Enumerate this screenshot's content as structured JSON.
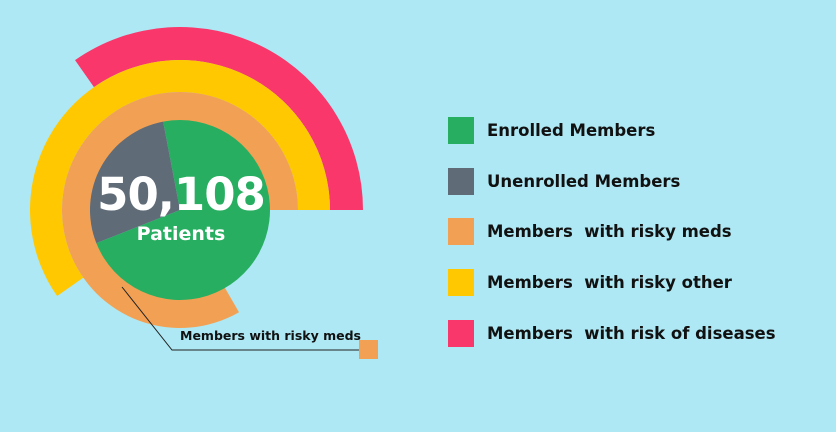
{
  "colors": {
    "background": "#ADE8F4",
    "enrolled": "#27AE60",
    "unenrolled": "#5F6B77",
    "risky_meds": "#F2A154",
    "risky_other": "#FFC800",
    "risk_of_diseases": "#F9376B"
  },
  "chart_data": {
    "type": "pie",
    "center": {
      "value": "50,108",
      "unit": "Patients"
    },
    "pie": {
      "slices": [
        {
          "label": "Enrolled Members",
          "value": 72,
          "color": "#27AE60"
        },
        {
          "label": "Unenrolled Members",
          "value": 28,
          "color": "#5F6B77"
        }
      ]
    },
    "rings": [
      {
        "label": "Members  with risky meds",
        "extent_deg": 300,
        "color": "#F2A154"
      },
      {
        "label": "Members  with risky other",
        "extent_deg": 215,
        "color": "#FFC800"
      },
      {
        "label": "Members  with risk of diseases",
        "extent_deg": 125,
        "color": "#F9376B"
      }
    ],
    "legend": {
      "placement": "right",
      "entries": [
        {
          "label": "Enrolled Members",
          "color": "#27AE60"
        },
        {
          "label": "Unenrolled Members",
          "color": "#5F6B77"
        },
        {
          "label": "Members  with risky meds",
          "color": "#F2A154"
        },
        {
          "label": "Members  with risky other",
          "color": "#FFC800"
        },
        {
          "label": "Members  with risk of diseases",
          "color": "#F9376B"
        }
      ]
    },
    "annotation": {
      "text": "Members with risky meds",
      "color": "#F2A154"
    }
  }
}
